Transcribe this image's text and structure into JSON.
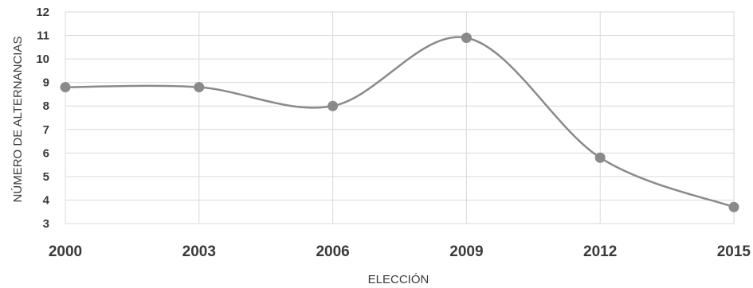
{
  "chart_data": {
    "type": "line",
    "x": [
      2000,
      2003,
      2006,
      2009,
      2012,
      2015
    ],
    "values": [
      8.8,
      8.8,
      8.0,
      10.9,
      5.8,
      3.7
    ],
    "xlabel": "ELECCIÓN",
    "ylabel": "NÚMERO DE ALTERNANCIAS",
    "xlim": [
      2000,
      2015
    ],
    "ylim": [
      3,
      12
    ],
    "yticks": [
      3,
      4,
      5,
      6,
      7,
      8,
      9,
      10,
      11,
      12
    ],
    "grid": true,
    "smoothed": true,
    "color": "#8a8a8a"
  }
}
